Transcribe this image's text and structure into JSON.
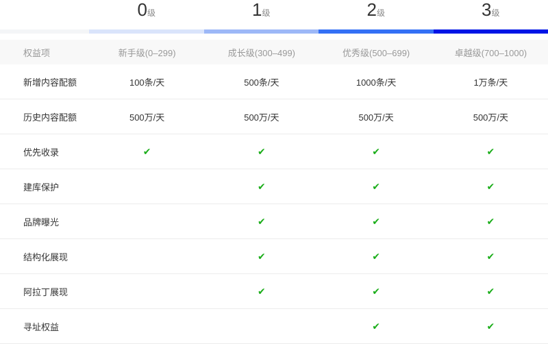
{
  "levels": [
    {
      "num": "0",
      "unit": "级",
      "color": "#dae4fb"
    },
    {
      "num": "1",
      "unit": "级",
      "color": "#9db8f7"
    },
    {
      "num": "2",
      "unit": "级",
      "color": "#3470f5"
    },
    {
      "num": "3",
      "unit": "级",
      "color": "#0015e6"
    }
  ],
  "table": {
    "headers": [
      "权益项",
      "新手级(0–299)",
      "成长级(300–499)",
      "优秀级(500–699)",
      "卓越级(700–1000)"
    ],
    "rows": [
      {
        "label": "新增内容配额",
        "cells": [
          "100条/天",
          "500条/天",
          "1000条/天",
          "1万条/天"
        ]
      },
      {
        "label": "历史内容配额",
        "cells": [
          "500万/天",
          "500万/天",
          "500万/天",
          "500万/天"
        ]
      },
      {
        "label": "优先收录",
        "cells": [
          true,
          true,
          true,
          true
        ]
      },
      {
        "label": "建库保护",
        "cells": [
          false,
          true,
          true,
          true
        ]
      },
      {
        "label": "品牌曝光",
        "cells": [
          false,
          true,
          true,
          true
        ]
      },
      {
        "label": "结构化展现",
        "cells": [
          false,
          true,
          true,
          true
        ]
      },
      {
        "label": "阿拉丁展现",
        "cells": [
          false,
          true,
          true,
          true
        ]
      },
      {
        "label": "寻址权益",
        "cells": [
          false,
          false,
          true,
          true
        ]
      }
    ]
  },
  "check_icon": "check-icon",
  "check_color": "#1aad19"
}
